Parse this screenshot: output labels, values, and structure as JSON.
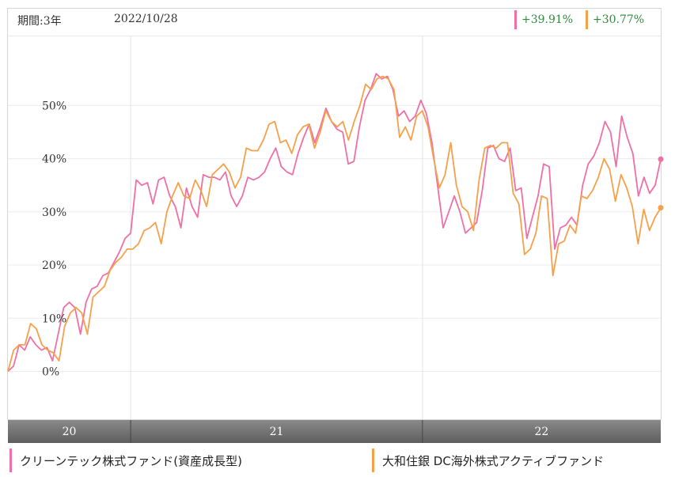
{
  "header": {
    "period": "期間:3年",
    "date": "2022/10/28"
  },
  "performance": [
    {
      "value": "+39.91%",
      "color": "#f06fa5"
    },
    {
      "value": "+30.77%",
      "color": "#f5a04a"
    }
  ],
  "legend": [
    {
      "name": "クリーンテック株式ファンド(資産成長型)",
      "color": "#f06fa5"
    },
    {
      "name": "大和住銀 DC海外株式アクティブファンド",
      "color": "#f5a04a"
    }
  ],
  "chart_data": {
    "type": "line",
    "ylim": [
      -9,
      63
    ],
    "y_ticks": [
      0,
      10,
      20,
      30,
      40,
      50
    ],
    "y_tick_labels": [
      "0%",
      "10%",
      "20%",
      "30%",
      "40%",
      "50%"
    ],
    "x_period_labels": [
      "20",
      "21",
      "22"
    ],
    "x_period_boundaries": [
      0,
      0.188,
      0.635,
      1.0
    ],
    "grid": true,
    "series": [
      {
        "name": "クリーンテック株式ファンド(資産成長型)",
        "color": "#f06fa5",
        "final_value": 39.91,
        "values": [
          0,
          1,
          5,
          4,
          6.5,
          5,
          4,
          4.5,
          2,
          7,
          12,
          13,
          12,
          7,
          13,
          15.5,
          16,
          18,
          18.5,
          20.5,
          22.5,
          25,
          26,
          36,
          35,
          35.5,
          31.5,
          36,
          36.5,
          33,
          31,
          27,
          34.5,
          31,
          29,
          37,
          36.5,
          36.5,
          36,
          37.5,
          33,
          31,
          33,
          36.5,
          36,
          36.5,
          37.5,
          40,
          42,
          38.5,
          37.5,
          37,
          41,
          44,
          46.5,
          43,
          46,
          49.5,
          47,
          45.5,
          45,
          39,
          39.5,
          46,
          51,
          53,
          56,
          55,
          55.5,
          53,
          48,
          49,
          47,
          48,
          51,
          48.5,
          43,
          35,
          27,
          30,
          33,
          30,
          26,
          27,
          28,
          34,
          42,
          42.5,
          40,
          39.5,
          42,
          34,
          34.5,
          25,
          29,
          33,
          39,
          38.5,
          23,
          27,
          27.5,
          29,
          27.5,
          35,
          39,
          40.5,
          43,
          47,
          45,
          38.5,
          48,
          44,
          41,
          33,
          36.5,
          33.5,
          35,
          39.91
        ]
      },
      {
        "name": "大和住銀 DC海外株式アクティブファンド",
        "color": "#f5a04a",
        "final_value": 30.77,
        "values": [
          0,
          4,
          5,
          5,
          9,
          8,
          5,
          4,
          3.5,
          2,
          8.5,
          11,
          12,
          11,
          7,
          14,
          15,
          16,
          19,
          20.5,
          21.5,
          23,
          23,
          24,
          26.5,
          27,
          28,
          24,
          30,
          33,
          35.5,
          33,
          32.5,
          36,
          34,
          31,
          37,
          38,
          39,
          37.5,
          34.5,
          36.5,
          42,
          41.5,
          41.5,
          43.5,
          46.5,
          47,
          43,
          43.5,
          41,
          44.5,
          46,
          46.5,
          42,
          45,
          49,
          47,
          46,
          47,
          43.5,
          47,
          50,
          54,
          53,
          55,
          55.5,
          55,
          53,
          44,
          46,
          43.5,
          48,
          49,
          46,
          40,
          34.5,
          37,
          43,
          35,
          31,
          30,
          26.5,
          36,
          42,
          42.5,
          42,
          43,
          43,
          33.5,
          31.5,
          22,
          23,
          26,
          33,
          32.5,
          18,
          24,
          24.5,
          27.5,
          26,
          33,
          32.5,
          34,
          36.5,
          40,
          38,
          32,
          37,
          34.5,
          31,
          24,
          30.5,
          26.5,
          29,
          30.77
        ]
      }
    ]
  }
}
